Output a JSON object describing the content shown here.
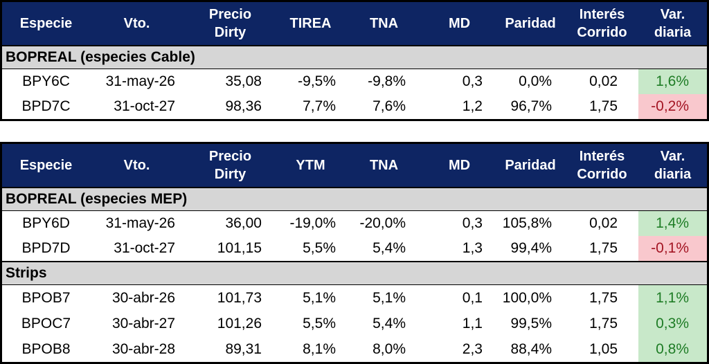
{
  "colors": {
    "header_bg": "#0E2563",
    "header_text": "#FFFFFF",
    "section_bg": "#D6D6D6",
    "positive_bg": "#C8E8C9",
    "positive_text": "#1E7C25",
    "negative_bg": "#F9C8CD",
    "negative_text": "#A31523",
    "border": "#000000"
  },
  "tables": [
    {
      "columns": [
        {
          "l1": "Especie",
          "l2": ""
        },
        {
          "l1": "Vto.",
          "l2": ""
        },
        {
          "l1": "Precio",
          "l2": "Dirty"
        },
        {
          "l1": "TIREA",
          "l2": ""
        },
        {
          "l1": "TNA",
          "l2": ""
        },
        {
          "l1": "MD",
          "l2": ""
        },
        {
          "l1": "Paridad",
          "l2": ""
        },
        {
          "l1": "Interés",
          "l2": "Corrido"
        },
        {
          "l1": "Var.",
          "l2": "diaria"
        }
      ],
      "sections": [
        {
          "title": "BOPREAL (especies Cable)",
          "rows": [
            {
              "trend": "up",
              "cells": [
                "BPY6C",
                "31-may-26",
                "35,08",
                "-9,5%",
                "-9,8%",
                "0,3",
                "0,0%",
                "0,02",
                "1,6%"
              ]
            },
            {
              "trend": "down",
              "cells": [
                "BPD7C",
                "31-oct-27",
                "98,36",
                "7,7%",
                "7,6%",
                "1,2",
                "96,7%",
                "1,75",
                "-0,2%"
              ]
            }
          ]
        }
      ]
    },
    {
      "columns": [
        {
          "l1": "Especie",
          "l2": ""
        },
        {
          "l1": "Vto.",
          "l2": ""
        },
        {
          "l1": "Precio",
          "l2": "Dirty"
        },
        {
          "l1": "YTM",
          "l2": ""
        },
        {
          "l1": "TNA",
          "l2": ""
        },
        {
          "l1": "MD",
          "l2": ""
        },
        {
          "l1": "Paridad",
          "l2": ""
        },
        {
          "l1": "Interés",
          "l2": "Corrido"
        },
        {
          "l1": "Var.",
          "l2": "diaria"
        }
      ],
      "sections": [
        {
          "title": "BOPREAL (especies MEP)",
          "rows": [
            {
              "trend": "up",
              "cells": [
                "BPY6D",
                "31-may-26",
                "36,00",
                "-19,0%",
                "-20,0%",
                "0,3",
                "105,8%",
                "0,02",
                "1,4%"
              ]
            },
            {
              "trend": "down",
              "cells": [
                "BPD7D",
                "31-oct-27",
                "101,15",
                "5,5%",
                "5,4%",
                "1,3",
                "99,4%",
                "1,75",
                "-0,1%"
              ]
            }
          ]
        },
        {
          "title": "Strips",
          "rows": [
            {
              "trend": "up",
              "cells": [
                "BPOB7",
                "30-abr-26",
                "101,73",
                "5,1%",
                "5,1%",
                "0,1",
                "100,0%",
                "1,75",
                "1,1%"
              ]
            },
            {
              "trend": "up",
              "cells": [
                "BPOC7",
                "30-abr-27",
                "101,26",
                "5,5%",
                "5,4%",
                "1,1",
                "99,5%",
                "1,75",
                "0,3%"
              ]
            },
            {
              "trend": "up",
              "cells": [
                "BPOB8",
                "30-abr-28",
                "89,31",
                "8,1%",
                "8,0%",
                "2,3",
                "88,4%",
                "1,05",
                "0,8%"
              ]
            }
          ]
        }
      ]
    }
  ]
}
